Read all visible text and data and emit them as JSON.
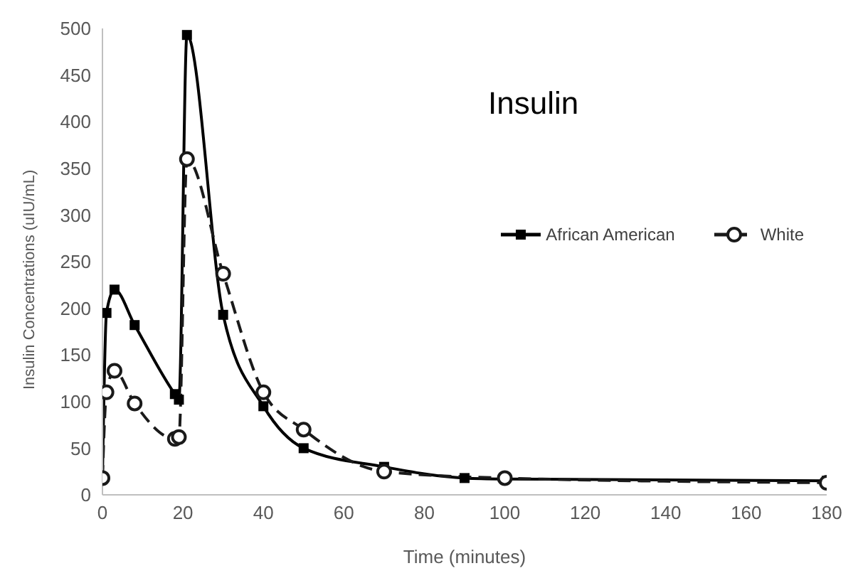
{
  "chart_data": {
    "type": "line",
    "title": "Insulin",
    "xlabel": "Time (minutes)",
    "ylabel": "Insulin Concentrations (uIU/mL)",
    "xlim": [
      0,
      180
    ],
    "xticks": [
      0,
      20,
      40,
      60,
      80,
      100,
      120,
      140,
      160,
      180
    ],
    "ylim": [
      0,
      500
    ],
    "yticks": [
      0,
      50,
      100,
      150,
      200,
      250,
      300,
      350,
      400,
      450,
      500
    ],
    "grid": false,
    "legend": "top right",
    "series": [
      {
        "name": "African American",
        "color": "#000000",
        "marker": "square",
        "line_style": "solid",
        "x": [
          0,
          1,
          3,
          8,
          18,
          19,
          21,
          30,
          40,
          50,
          70,
          90,
          100,
          180
        ],
        "values": [
          18,
          195,
          220,
          182,
          108,
          102,
          493,
          193,
          95,
          50,
          30,
          18,
          17,
          15
        ]
      },
      {
        "name": "White",
        "color": "#1a1a1a",
        "marker": "circle",
        "line_style": "dashed",
        "x": [
          0,
          1,
          3,
          8,
          18,
          19,
          21,
          30,
          40,
          50,
          70,
          100,
          180
        ],
        "values": [
          18,
          110,
          133,
          98,
          60,
          62,
          360,
          237,
          110,
          70,
          25,
          18,
          13
        ]
      }
    ]
  }
}
